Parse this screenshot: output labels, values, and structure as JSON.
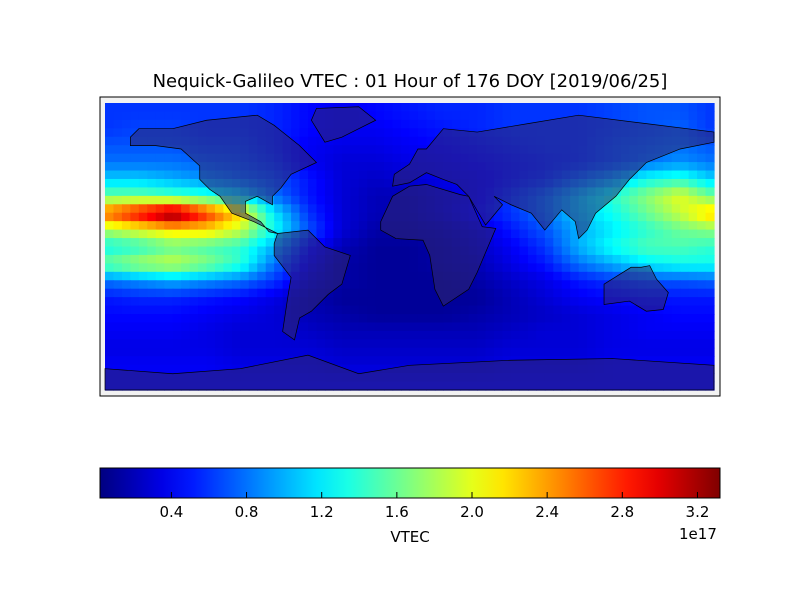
{
  "chart_data": {
    "type": "heatmap",
    "title": "Nequick-Galileo VTEC : 01 Hour of 176 DOY [2019/06/25]",
    "projection": "cylindrical",
    "colormap": "jet",
    "lon": [
      -180,
      -160,
      -140,
      -120,
      -100,
      -80,
      -60,
      -40,
      -20,
      0,
      20,
      40,
      60,
      80,
      100,
      120,
      140,
      160,
      180
    ],
    "lat": [
      80,
      70,
      60,
      50,
      40,
      30,
      20,
      10,
      0,
      -10,
      -20,
      -30,
      -40,
      -50,
      -60,
      -70,
      -80
    ],
    "values_unit_multiplier": "1e17",
    "values": [
      [
        0.6,
        0.6,
        0.6,
        0.6,
        0.6,
        0.55,
        0.45,
        0.4,
        0.45,
        0.5,
        0.55,
        0.55,
        0.6,
        0.6,
        0.6,
        0.65,
        0.7,
        0.7,
        0.6
      ],
      [
        0.6,
        0.65,
        0.65,
        0.6,
        0.6,
        0.55,
        0.45,
        0.4,
        0.4,
        0.45,
        0.5,
        0.55,
        0.6,
        0.6,
        0.6,
        0.65,
        0.7,
        0.75,
        0.6
      ],
      [
        0.7,
        0.7,
        0.7,
        0.65,
        0.65,
        0.55,
        0.4,
        0.35,
        0.35,
        0.4,
        0.45,
        0.5,
        0.55,
        0.6,
        0.6,
        0.7,
        0.75,
        0.8,
        0.7
      ],
      [
        0.8,
        0.8,
        0.8,
        0.75,
        0.7,
        0.6,
        0.4,
        0.3,
        0.3,
        0.35,
        0.4,
        0.45,
        0.5,
        0.55,
        0.6,
        0.7,
        0.8,
        0.9,
        0.8
      ],
      [
        1.1,
        1.1,
        1.0,
        0.9,
        0.8,
        0.7,
        0.5,
        0.3,
        0.25,
        0.3,
        0.35,
        0.4,
        0.5,
        0.6,
        0.8,
        1.0,
        1.3,
        1.4,
        1.1
      ],
      [
        1.6,
        1.6,
        1.5,
        1.4,
        1.2,
        0.8,
        0.5,
        0.3,
        0.2,
        0.2,
        0.3,
        0.4,
        0.6,
        0.8,
        1.1,
        1.4,
        1.7,
        2.0,
        1.6
      ],
      [
        2.6,
        3.0,
        3.4,
        2.8,
        2.2,
        1.2,
        0.6,
        0.3,
        0.2,
        0.2,
        0.3,
        0.45,
        0.6,
        0.8,
        1.1,
        1.3,
        1.6,
        1.9,
        2.3
      ],
      [
        1.8,
        2.0,
        2.2,
        2.2,
        1.9,
        1.3,
        0.7,
        0.3,
        0.15,
        0.15,
        0.2,
        0.3,
        0.5,
        0.7,
        1.0,
        1.2,
        1.4,
        1.6,
        1.7
      ],
      [
        1.3,
        1.4,
        1.6,
        1.5,
        1.4,
        1.0,
        0.5,
        0.2,
        0.1,
        0.1,
        0.15,
        0.25,
        0.4,
        0.6,
        1.0,
        1.3,
        1.5,
        1.5,
        1.4
      ],
      [
        1.6,
        1.8,
        1.9,
        1.7,
        1.4,
        0.8,
        0.4,
        0.15,
        0.1,
        0.1,
        0.15,
        0.2,
        0.35,
        0.5,
        0.8,
        1.0,
        1.2,
        1.3,
        1.3
      ],
      [
        0.8,
        0.9,
        1.0,
        0.9,
        0.8,
        0.6,
        0.3,
        0.15,
        0.1,
        0.1,
        0.1,
        0.15,
        0.25,
        0.35,
        0.5,
        0.6,
        0.7,
        0.7,
        0.75
      ],
      [
        0.5,
        0.55,
        0.55,
        0.5,
        0.45,
        0.35,
        0.2,
        0.1,
        0.1,
        0.1,
        0.1,
        0.1,
        0.2,
        0.3,
        0.4,
        0.45,
        0.5,
        0.5,
        0.5
      ],
      [
        0.45,
        0.45,
        0.45,
        0.4,
        0.35,
        0.3,
        0.2,
        0.15,
        0.1,
        0.1,
        0.1,
        0.15,
        0.2,
        0.25,
        0.3,
        0.35,
        0.4,
        0.45,
        0.45
      ],
      [
        0.4,
        0.4,
        0.4,
        0.35,
        0.3,
        0.3,
        0.25,
        0.2,
        0.2,
        0.2,
        0.2,
        0.2,
        0.25,
        0.3,
        0.3,
        0.35,
        0.4,
        0.4,
        0.4
      ],
      [
        0.35,
        0.35,
        0.35,
        0.35,
        0.3,
        0.3,
        0.3,
        0.25,
        0.25,
        0.25,
        0.25,
        0.25,
        0.3,
        0.3,
        0.3,
        0.35,
        0.35,
        0.35,
        0.35
      ],
      [
        0.4,
        0.4,
        0.4,
        0.4,
        0.35,
        0.35,
        0.35,
        0.3,
        0.3,
        0.3,
        0.3,
        0.3,
        0.35,
        0.35,
        0.35,
        0.4,
        0.4,
        0.4,
        0.4
      ],
      [
        0.4,
        0.4,
        0.4,
        0.4,
        0.4,
        0.4,
        0.4,
        0.4,
        0.4,
        0.4,
        0.4,
        0.4,
        0.4,
        0.4,
        0.4,
        0.4,
        0.4,
        0.4,
        0.4
      ]
    ],
    "colorbar": {
      "label": "VTEC",
      "offset_text": "1e17",
      "ticks": [
        "0.4",
        "0.8",
        "1.2",
        "1.6",
        "2.0",
        "2.4",
        "2.8",
        "3.2"
      ],
      "tick_values": [
        0.4,
        0.8,
        1.2,
        1.6,
        2.0,
        2.4,
        2.8,
        3.2
      ],
      "range": [
        0.02,
        3.32
      ],
      "orientation": "horizontal"
    }
  }
}
